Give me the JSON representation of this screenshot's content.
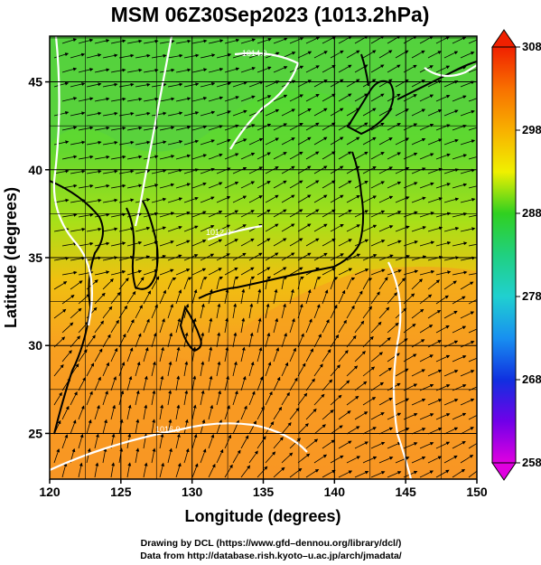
{
  "title": "MSM 06Z30Sep2023 (1013.2hPa)",
  "xlabel": "Longitude (degrees)",
  "ylabel": "Latitude  (degrees)",
  "x_ticks": [
    "120",
    "125",
    "130",
    "135",
    "140",
    "145",
    "150"
  ],
  "y_ticks": [
    "25",
    "30",
    "35",
    "40",
    "45"
  ],
  "colorbar": {
    "min": 258,
    "max": 308,
    "ticks": [
      "258",
      "268",
      "278",
      "288",
      "298",
      "308"
    ]
  },
  "isobar_labels": [
    "1014.0",
    "1012.0",
    "1016.0"
  ],
  "credits": {
    "line1": "Drawing by DCL (https://www.gfd–dennou.org/library/dcl/)",
    "line2": "Data from http://database.rish.kyoto–u.ac.jp/arch/jmadata/"
  },
  "chart_data": {
    "type": "heatmap",
    "title": "MSM 06Z30Sep2023 (1013.2hPa)",
    "xlabel": "Longitude (degrees)",
    "ylabel": "Latitude  (degrees)",
    "xlim": [
      120,
      150
    ],
    "ylim": [
      22.4,
      47.6
    ],
    "x_ticks": [
      120,
      125,
      130,
      135,
      140,
      145,
      150
    ],
    "y_ticks": [
      25,
      30,
      35,
      40,
      45
    ],
    "colorbar_range": [
      258,
      308
    ],
    "colorbar_ticks": [
      258,
      268,
      278,
      288,
      298,
      308
    ],
    "colormap": [
      "#e000e0",
      "#7000e8",
      "#1030e0",
      "#1890f0",
      "#20d0d0",
      "#20d070",
      "#30d020",
      "#a0e000",
      "#f0f000",
      "#f8b000",
      "#f87000",
      "#f02000"
    ],
    "grid": true,
    "temperature_samples_K": [
      {
        "lon": 121,
        "lat": 46,
        "value": 291
      },
      {
        "lon": 128,
        "lat": 45,
        "value": 292
      },
      {
        "lon": 135,
        "lat": 45,
        "value": 291
      },
      {
        "lon": 143,
        "lat": 45,
        "value": 292
      },
      {
        "lon": 148,
        "lat": 44,
        "value": 293
      },
      {
        "lon": 125,
        "lat": 40,
        "value": 292
      },
      {
        "lon": 131,
        "lat": 40,
        "value": 292
      },
      {
        "lon": 137,
        "lat": 40,
        "value": 293
      },
      {
        "lon": 145,
        "lat": 40,
        "value": 292
      },
      {
        "lon": 127,
        "lat": 36,
        "value": 294
      },
      {
        "lon": 133,
        "lat": 37,
        "value": 295
      },
      {
        "lon": 140,
        "lat": 35,
        "value": 298
      },
      {
        "lon": 147,
        "lat": 35,
        "value": 299
      },
      {
        "lon": 124,
        "lat": 31,
        "value": 300
      },
      {
        "lon": 135,
        "lat": 31,
        "value": 300
      },
      {
        "lon": 145,
        "lat": 30,
        "value": 300
      },
      {
        "lon": 124,
        "lat": 26,
        "value": 300
      },
      {
        "lon": 135,
        "lat": 25,
        "value": 301
      },
      {
        "lon": 146,
        "lat": 24,
        "value": 301
      }
    ]
  }
}
